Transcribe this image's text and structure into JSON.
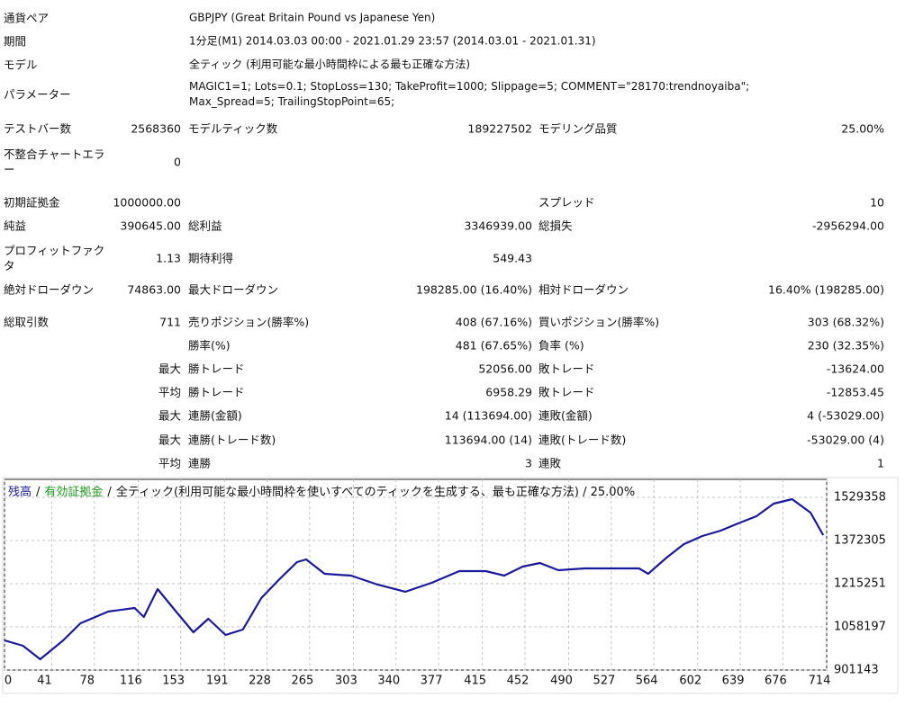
{
  "report": {
    "info": [
      {
        "label": "通貨ペア",
        "value": "GBPJPY (Great Britain Pound vs Japanese Yen)"
      },
      {
        "label": "期間",
        "value": "1分足(M1) 2014.03.03 00:00 - 2021.01.29 23:57 (2014.03.01 - 2021.01.31)"
      },
      {
        "label": "モデル",
        "value": "全ティック (利用可能な最小時間枠による最も正確な方法)"
      },
      {
        "label": "パラメーター",
        "value": "MAGIC1=1; Lots=0.1; StopLoss=130; TakeProfit=1000; Slippage=5; COMMENT=\"28170:trendnoyaiba\"; Max_Spread=5; TrailingStopPoint=65;"
      }
    ],
    "stats": [
      [
        "テストバー数",
        "2568360",
        "モデルティック数",
        "189227502",
        "モデリング品質",
        "25.00%"
      ],
      [
        "不整合チャートエラー",
        "0",
        null,
        null,
        null,
        null
      ],
      [
        "初期証拠金",
        "1000000.00",
        null,
        null,
        "スプレッド",
        "10"
      ],
      [
        "純益",
        "390645.00",
        "総利益",
        "3346939.00",
        "総損失",
        "-2956294.00"
      ],
      [
        "プロフィットファクタ",
        "1.13",
        "期待利得",
        "549.43",
        null,
        null
      ],
      [
        "絶対ドローダウン",
        "74863.00",
        "最大ドローダウン",
        "198285.00 (16.40%)",
        "相対ドローダウン",
        "16.40% (198285.00)"
      ],
      [
        "総取引数",
        "711",
        "売りポジション(勝率%)",
        "408 (67.16%)",
        "買いポジション(勝率%)",
        "303 (68.32%)"
      ],
      [
        null,
        null,
        "勝率(%)",
        "481 (67.65%)",
        "負率 (%)",
        "230 (32.35%)"
      ],
      [
        null,
        "最大",
        "勝トレード",
        "52056.00",
        "敗トレード",
        "-13624.00"
      ],
      [
        null,
        "平均",
        "勝トレード",
        "6958.29",
        "敗トレード",
        "-12853.45"
      ],
      [
        null,
        "最大",
        "連勝(金額)",
        "14 (113694.00)",
        "連敗(金額)",
        "4 (-53029.00)"
      ],
      [
        null,
        "最大",
        "連勝(トレード数)",
        "113694.00 (14)",
        "連敗(トレード数)",
        "-53029.00 (4)"
      ],
      [
        null,
        "平均",
        "連勝",
        "3",
        "連敗",
        "1"
      ]
    ]
  },
  "chart_data": {
    "type": "line",
    "separator": "/",
    "equity_label": {
      "text": "有効証拠金",
      "color": "#1a9a1a"
    },
    "caption": "全ティック(利用可能な最小時間枠を使いすべてのティックを生成する、最も正確な方法) / 25.00%",
    "series": [
      {
        "name": "残高",
        "color": "#1a1a9c",
        "x": [
          0,
          16,
          31,
          51,
          66,
          90,
          113,
          121,
          133,
          149,
          164,
          177,
          192,
          207,
          223,
          238,
          254,
          262,
          278,
          301,
          324,
          348,
          371,
          395,
          418,
          434,
          450,
          465,
          481,
          504,
          528,
          551,
          559,
          575,
          590,
          606,
          622,
          637,
          653,
          668,
          684,
          700,
          711
        ],
        "values": [
          1009119,
          989487,
          940407,
          1009119,
          1071287,
          1113823,
          1126911,
          1094191,
          1195623,
          1113823,
          1038567,
          1087647,
          1028751,
          1048383,
          1162903,
          1228343,
          1293783,
          1303599,
          1251247,
          1244703,
          1211983,
          1185807,
          1218527,
          1261063,
          1261063,
          1244703,
          1277423,
          1290511,
          1264335,
          1270879,
          1270879,
          1270879,
          1251247,
          1310143,
          1359223,
          1388671,
          1408303,
          1434479,
          1460655,
          1506463,
          1522823,
          1473743,
          1391943
        ]
      }
    ],
    "xlim": [
      0,
      714
    ],
    "xticks": [
      0,
      41,
      78,
      116,
      153,
      191,
      228,
      265,
      303,
      340,
      377,
      415,
      452,
      490,
      527,
      564,
      602,
      639,
      676,
      714
    ],
    "ylim": [
      901143,
      1594790
    ],
    "yticks": [
      901143,
      1058197,
      1215251,
      1372305,
      1529358
    ],
    "grid": true
  }
}
